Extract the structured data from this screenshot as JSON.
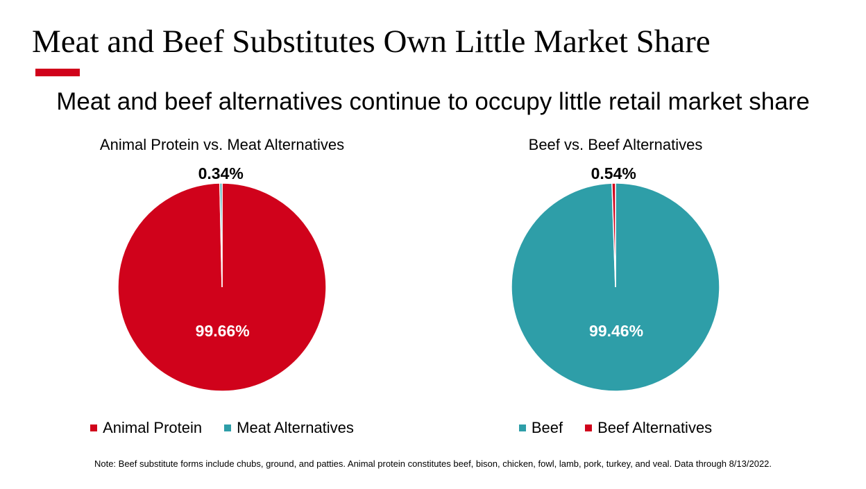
{
  "slide": {
    "title": "Meat and Beef Substitutes Own Little Market Share",
    "accent_color": "#d0021b",
    "subtitle": "Meat and beef alternatives continue to occupy little retail market share",
    "note": "Note: Beef substitute forms include chubs, ground, and patties. Animal protein constitutes beef, bison, chicken, fowl, lamb, pork, turkey, and veal. Data through 8/13/2022."
  },
  "chart_data": [
    {
      "type": "pie",
      "title": "Animal Protein vs. Meat Alternatives",
      "slices": [
        {
          "name": "Animal Protein",
          "value": 99.66,
          "label": "99.66%",
          "color": "#d0021b"
        },
        {
          "name": "Meat Alternatives",
          "value": 0.34,
          "label": "0.34%",
          "color": "#2e9ea8"
        }
      ],
      "legend": "bottom"
    },
    {
      "type": "pie",
      "title": "Beef vs. Beef Alternatives",
      "slices": [
        {
          "name": "Beef",
          "value": 99.46,
          "label": "99.46%",
          "color": "#2e9ea8"
        },
        {
          "name": "Beef Alternatives",
          "value": 0.54,
          "label": "0.54%",
          "color": "#d0021b"
        }
      ],
      "legend": "bottom"
    }
  ]
}
